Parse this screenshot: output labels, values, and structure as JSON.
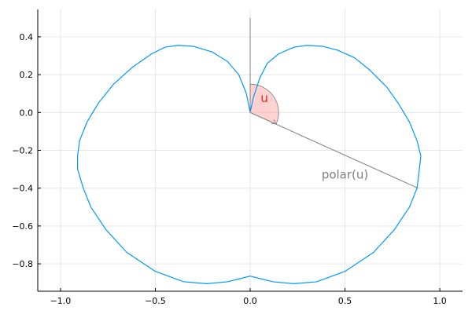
{
  "chart_data": {
    "type": "line",
    "title": "",
    "xlabel": "",
    "ylabel": "",
    "xlim": [
      -1.12,
      1.12
    ],
    "ylim": [
      -0.945,
      0.545
    ],
    "grid": true,
    "legend": "none",
    "xticks": [
      -1.0,
      -0.5,
      0.0,
      0.5,
      1.0
    ],
    "xtick_labels": [
      "−1.0",
      "−0.5",
      "0.0",
      "0.5",
      "1.0"
    ],
    "yticks": [
      0.4,
      0.2,
      0.0,
      -0.2,
      -0.4,
      -0.6,
      -0.8
    ],
    "ytick_labels": [
      "0.4",
      "0.2",
      "0.0",
      "−0.2",
      "−0.4",
      "−0.6",
      "−0.8"
    ],
    "series": [
      {
        "kind": "polar-curve",
        "color": "#009af9",
        "points": [
          [
            0.0,
            0.0
          ],
          [
            0.017,
            0.08
          ],
          [
            0.05,
            0.18
          ],
          [
            0.09,
            0.26
          ],
          [
            0.15,
            0.31
          ],
          [
            0.23,
            0.345
          ],
          [
            0.3,
            0.355
          ],
          [
            0.38,
            0.35
          ],
          [
            0.46,
            0.33
          ],
          [
            0.55,
            0.29
          ],
          [
            0.63,
            0.225
          ],
          [
            0.72,
            0.135
          ],
          [
            0.78,
            0.05
          ],
          [
            0.84,
            -0.05
          ],
          [
            0.88,
            -0.15
          ],
          [
            0.9,
            -0.23
          ],
          [
            0.89,
            -0.32
          ],
          [
            0.88,
            -0.4
          ],
          [
            0.84,
            -0.5
          ],
          [
            0.76,
            -0.62
          ],
          [
            0.65,
            -0.74
          ],
          [
            0.5,
            -0.84
          ],
          [
            0.35,
            -0.895
          ],
          [
            0.23,
            -0.905
          ],
          [
            0.12,
            -0.895
          ],
          [
            0.04,
            -0.875
          ],
          [
            0.0,
            -0.865
          ],
          [
            -0.04,
            -0.875
          ],
          [
            -0.12,
            -0.895
          ],
          [
            -0.23,
            -0.905
          ],
          [
            -0.35,
            -0.895
          ],
          [
            -0.5,
            -0.84
          ],
          [
            -0.65,
            -0.74
          ],
          [
            -0.76,
            -0.62
          ],
          [
            -0.84,
            -0.5
          ],
          [
            -0.88,
            -0.4
          ],
          [
            -0.91,
            -0.3
          ],
          [
            -0.91,
            -0.23
          ],
          [
            -0.9,
            -0.15
          ],
          [
            -0.86,
            -0.05
          ],
          [
            -0.8,
            0.05
          ],
          [
            -0.72,
            0.15
          ],
          [
            -0.62,
            0.24
          ],
          [
            -0.52,
            0.31
          ],
          [
            -0.45,
            0.345
          ],
          [
            -0.38,
            0.355
          ],
          [
            -0.3,
            0.35
          ],
          [
            -0.2,
            0.32
          ],
          [
            -0.12,
            0.27
          ],
          [
            -0.06,
            0.2
          ],
          [
            -0.02,
            0.1
          ],
          [
            0.0,
            0.0
          ]
        ]
      },
      {
        "kind": "segment",
        "color": "#808080",
        "points": [
          [
            0.0,
            0.5
          ],
          [
            0.0,
            0.0
          ]
        ]
      },
      {
        "kind": "segment",
        "color": "#808080",
        "points": [
          [
            0.0,
            0.0
          ],
          [
            0.885,
            -0.4
          ]
        ]
      }
    ],
    "angle_wedge": {
      "center": [
        0.0,
        0.0
      ],
      "radius": 0.15,
      "from_angle_deg": 90,
      "to_angle_deg": -24.3,
      "fill": "#ff9999",
      "stroke": "#808080"
    },
    "annotations": [
      {
        "text": "u",
        "x": 0.075,
        "y": 0.055,
        "color": "#d62728",
        "size": "large"
      },
      {
        "text": "polar(u)",
        "x": 0.5,
        "y": -0.35,
        "color": "#808080",
        "size": "large"
      }
    ]
  }
}
